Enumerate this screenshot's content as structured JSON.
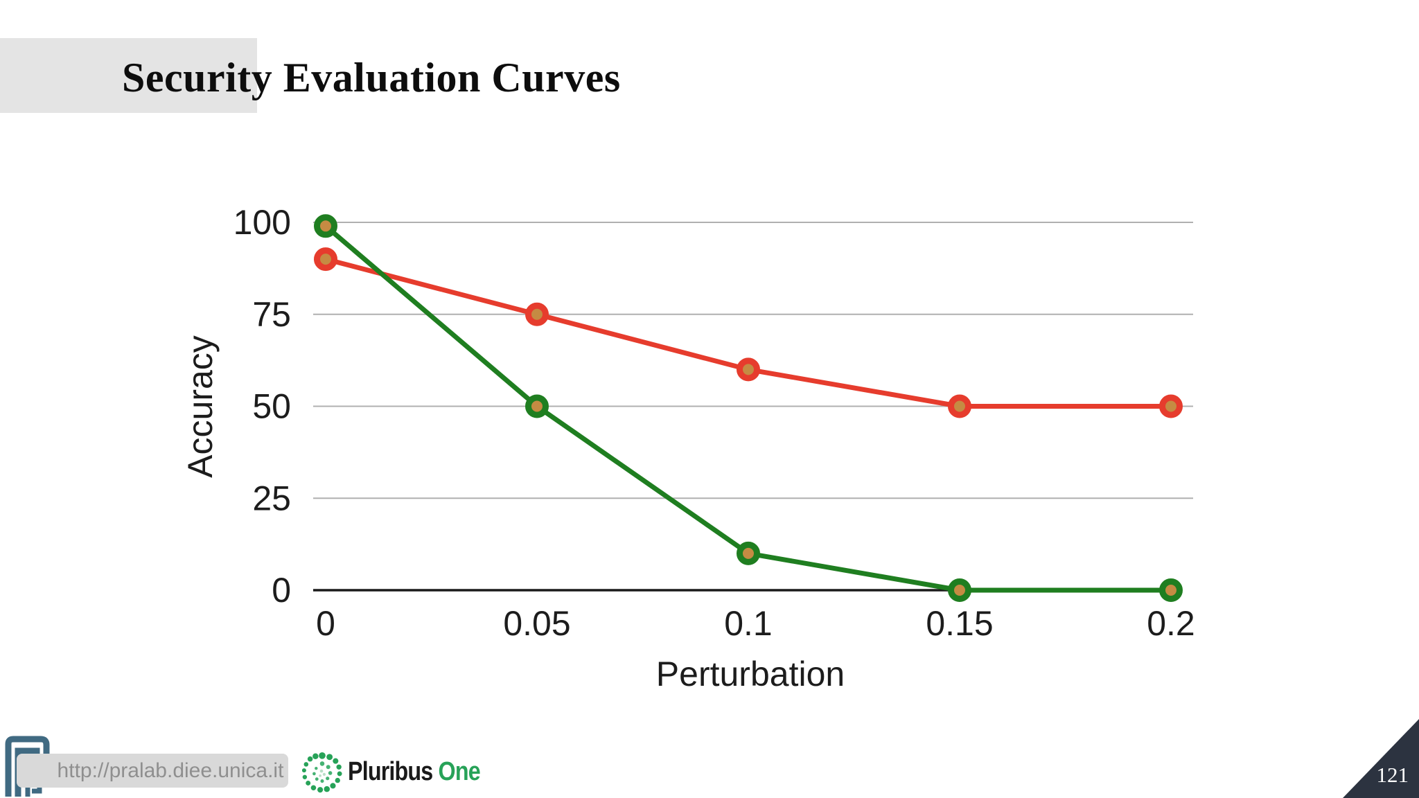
{
  "slide": {
    "title": "Security Evaluation Curves",
    "page_number": "121"
  },
  "footer": {
    "url": "http://pralab.diee.unica.it",
    "pluribus_brand": {
      "name_dark": "Pluribus",
      "name_green": "One"
    },
    "icons": {
      "pralab_logo": "pralab-maze-p-logo",
      "pluribus_logo": "pluribus-one-dotted-spiral-logo"
    },
    "colors": {
      "url_box_bg": "#d9d9d9",
      "url_text": "#8f8f8f",
      "pra_logo_blue": "#406a82",
      "pluribus_green": "#27a258",
      "page_corner_bg": "#2c3340"
    }
  },
  "chart_data": {
    "type": "line",
    "title": "",
    "xlabel": "Perturbation",
    "ylabel": "Accuracy",
    "x": [
      0,
      0.05,
      0.1,
      0.15,
      0.2
    ],
    "xtick_labels": [
      "0",
      "0.05",
      "0.1",
      "0.15",
      "0.2"
    ],
    "yticks": [
      0,
      25,
      50,
      75,
      100
    ],
    "ytick_labels": [
      "0",
      "25",
      "50",
      "75",
      "100"
    ],
    "xlim": [
      0,
      0.2
    ],
    "ylim": [
      0,
      100
    ],
    "grid": true,
    "legend": "none",
    "marker_fill": "#c58b43",
    "series": [
      {
        "name": "red-curve",
        "color": "#e63c2d",
        "values": [
          90,
          75,
          60,
          50,
          50
        ]
      },
      {
        "name": "green-curve",
        "color": "#1f7e20",
        "values": [
          99,
          50,
          10,
          0,
          0
        ]
      }
    ]
  }
}
